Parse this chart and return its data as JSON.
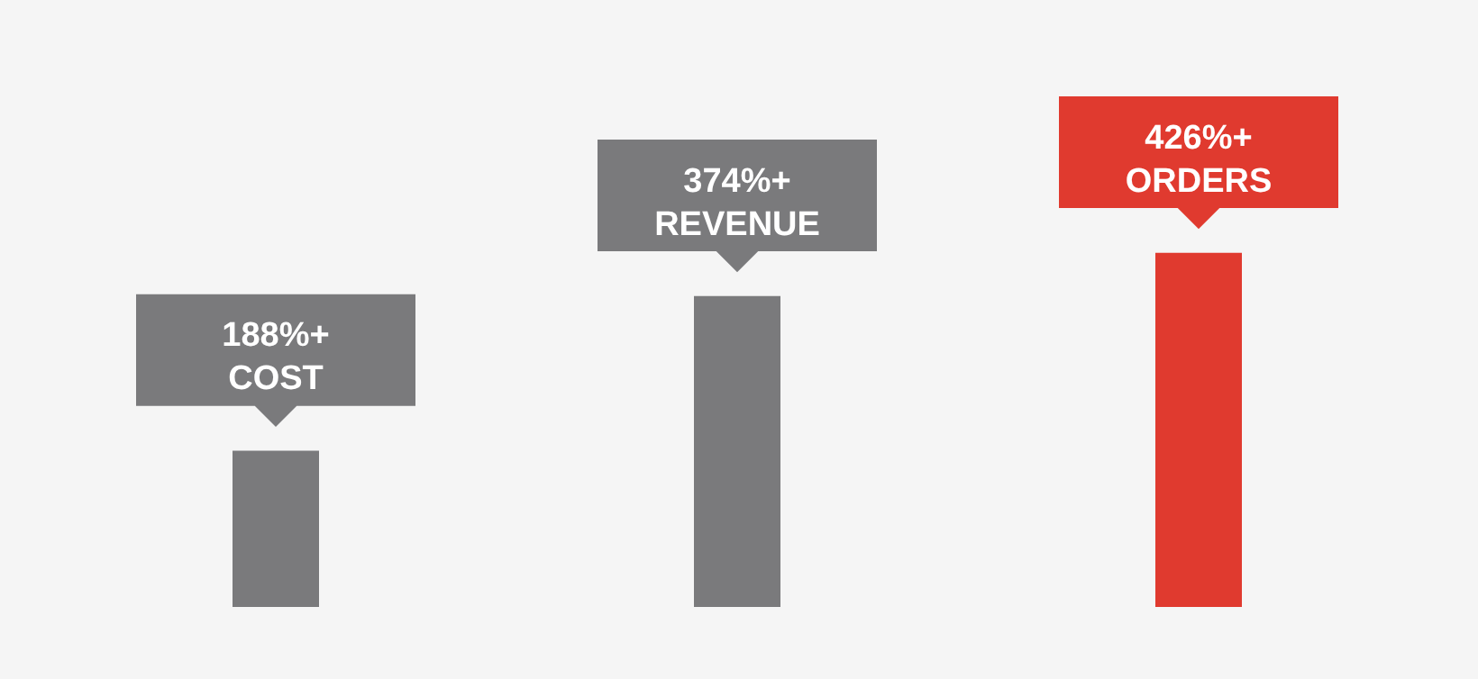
{
  "chart_data": {
    "type": "bar",
    "categories": [
      "COST",
      "REVENUE",
      "ORDERS"
    ],
    "values": [
      188,
      374,
      426
    ],
    "colors": [
      "#7a7a7c",
      "#7a7a7c",
      "#e03a2f"
    ],
    "value_labels": [
      "188%+",
      "374%+",
      "426%+"
    ],
    "ylim": [
      0,
      730
    ],
    "tick_labels": false
  }
}
